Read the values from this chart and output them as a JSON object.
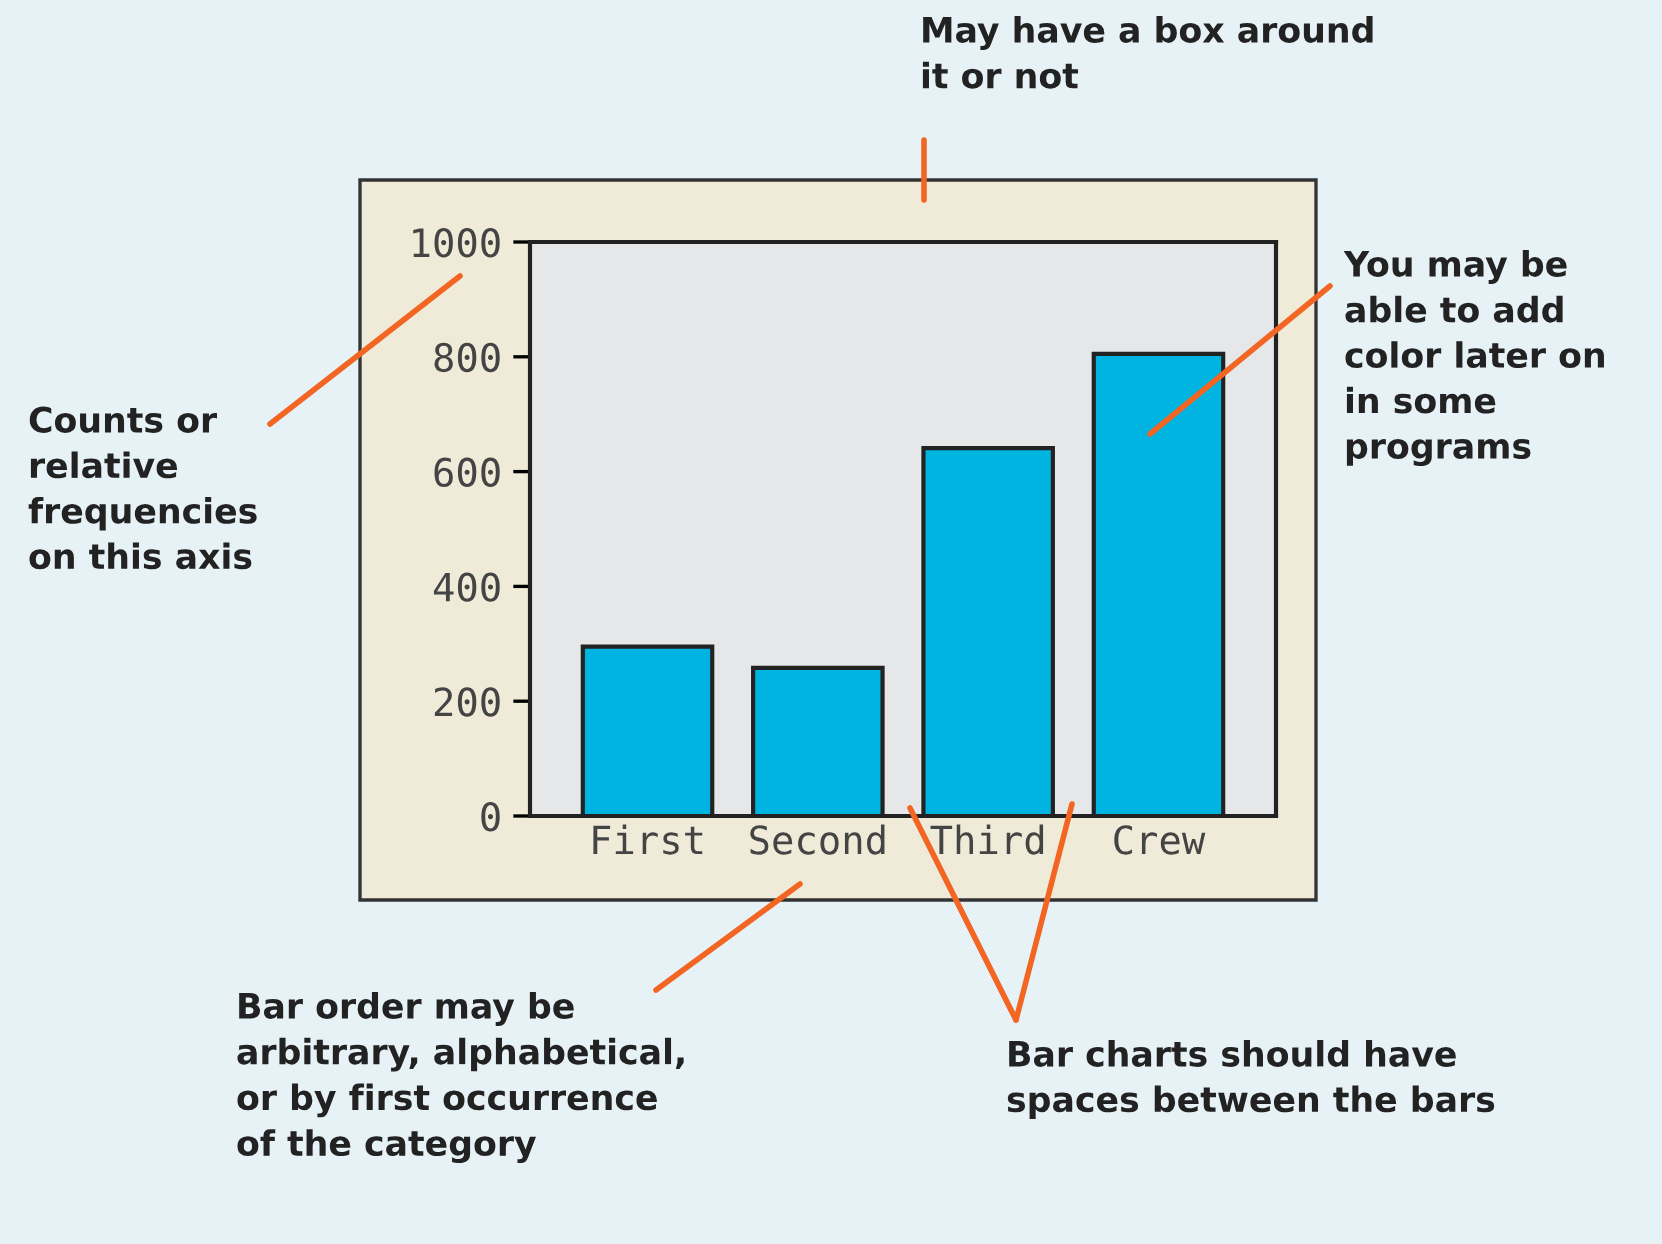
{
  "chart_data": {
    "type": "bar",
    "categories": [
      "First",
      "Second",
      "Third",
      "Crew"
    ],
    "values": [
      295,
      258,
      641,
      805
    ],
    "color": "#00b4e2",
    "ylim": [
      0,
      1000
    ],
    "yticks": [
      0,
      200,
      400,
      600,
      800,
      1000
    ],
    "grid": false,
    "annotations": [
      "May have a box around\nit or not",
      "Counts or\nrelative\nfrequencies\non this axis",
      "You may be\nable to add\ncolor later on\nin some\nprograms",
      "Bar order may be\narbitrary, alphabetical,\nor by first occurrence\nof the category",
      "Bar charts should have\nspaces between the bars"
    ]
  }
}
